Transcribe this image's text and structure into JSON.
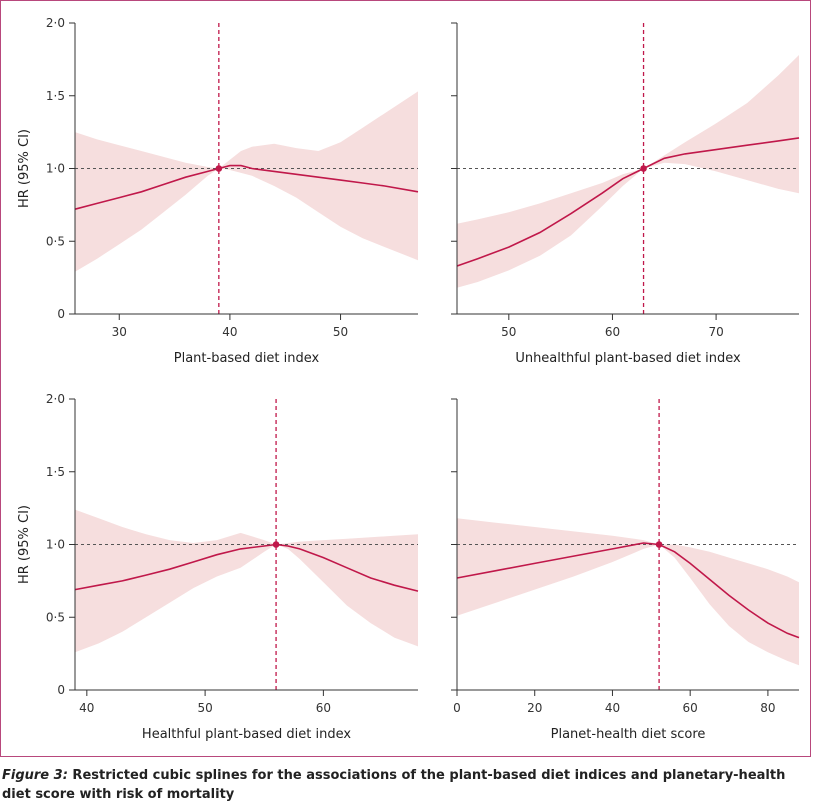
{
  "colors": {
    "frame": "#b8487c",
    "line": "#c0184a",
    "band": "#f6dede",
    "ref_line": "#555555",
    "axis": "#333333"
  },
  "caption": {
    "figure_number": "Figure 3:",
    "text": " Restricted cubic splines for the associations of the plant-based diet indices and planetary-health diet score with risk of mortality"
  },
  "chart_data": [
    {
      "type": "line",
      "xlabel": "Plant-based diet index",
      "ylabel": "HR (95% CI)",
      "xlim": [
        26,
        57
      ],
      "ylim": [
        0,
        2.0
      ],
      "xticks": [
        30,
        40,
        50
      ],
      "yticks": [
        0,
        0.5,
        1.0,
        1.5,
        2.0
      ],
      "ytick_labels": [
        "0",
        "0·5",
        "1·0",
        "1·5",
        "2·0"
      ],
      "reference_x": 39,
      "reference_hr": 1.0,
      "x": [
        26,
        28,
        30,
        32,
        34,
        36,
        38,
        39,
        40,
        41,
        42,
        44,
        46,
        48,
        50,
        52,
        54,
        57
      ],
      "hr": [
        0.72,
        0.76,
        0.8,
        0.84,
        0.89,
        0.94,
        0.98,
        1.0,
        1.02,
        1.02,
        1.0,
        0.98,
        0.96,
        0.94,
        0.92,
        0.9,
        0.88,
        0.84
      ],
      "upper": [
        1.25,
        1.2,
        1.16,
        1.12,
        1.08,
        1.04,
        1.01,
        1.0,
        1.06,
        1.12,
        1.15,
        1.17,
        1.14,
        1.12,
        1.18,
        1.28,
        1.38,
        1.53
      ],
      "lower": [
        0.29,
        0.38,
        0.48,
        0.58,
        0.7,
        0.82,
        0.95,
        1.0,
        0.99,
        0.97,
        0.95,
        0.88,
        0.8,
        0.7,
        0.6,
        0.52,
        0.46,
        0.37
      ]
    },
    {
      "type": "line",
      "xlabel": "Unhealthful plant-based diet index",
      "ylabel": "",
      "xlim": [
        45,
        78
      ],
      "ylim": [
        0,
        2.0
      ],
      "xticks": [
        50,
        60,
        70
      ],
      "yticks": [
        0,
        0.5,
        1.0,
        1.5,
        2.0
      ],
      "ytick_labels": [],
      "reference_x": 63,
      "reference_hr": 1.0,
      "x": [
        45,
        47,
        50,
        53,
        56,
        59,
        61,
        63,
        65,
        67,
        70,
        73,
        76,
        78
      ],
      "hr": [
        0.33,
        0.38,
        0.46,
        0.56,
        0.69,
        0.83,
        0.93,
        1.0,
        1.07,
        1.1,
        1.13,
        1.16,
        1.19,
        1.21
      ],
      "upper": [
        0.62,
        0.65,
        0.7,
        0.76,
        0.83,
        0.9,
        0.96,
        1.0,
        1.09,
        1.18,
        1.31,
        1.45,
        1.64,
        1.78
      ],
      "lower": [
        0.18,
        0.22,
        0.3,
        0.4,
        0.54,
        0.74,
        0.88,
        1.0,
        1.04,
        1.03,
        0.98,
        0.92,
        0.86,
        0.83
      ]
    },
    {
      "type": "line",
      "xlabel": "Healthful plant-based diet index",
      "ylabel": "HR (95% CI)",
      "xlim": [
        39,
        68
      ],
      "ylim": [
        0,
        2.0
      ],
      "xticks": [
        40,
        50,
        60
      ],
      "yticks": [
        0,
        0.5,
        1.0,
        1.5,
        2.0
      ],
      "ytick_labels": [
        "0",
        "0·5",
        "1·0",
        "1·5",
        "2·0"
      ],
      "reference_x": 56,
      "reference_hr": 1.0,
      "x": [
        39,
        41,
        43,
        45,
        47,
        49,
        51,
        53,
        55,
        56,
        57,
        58,
        60,
        62,
        64,
        66,
        68
      ],
      "hr": [
        0.69,
        0.72,
        0.75,
        0.79,
        0.83,
        0.88,
        0.93,
        0.97,
        0.99,
        1.0,
        0.99,
        0.97,
        0.91,
        0.84,
        0.77,
        0.72,
        0.68
      ],
      "upper": [
        1.24,
        1.18,
        1.12,
        1.07,
        1.03,
        1.01,
        1.03,
        1.08,
        1.03,
        1.0,
        1.01,
        1.02,
        1.03,
        1.04,
        1.05,
        1.06,
        1.07
      ],
      "lower": [
        0.26,
        0.32,
        0.4,
        0.5,
        0.6,
        0.7,
        0.78,
        0.84,
        0.95,
        1.0,
        0.97,
        0.9,
        0.74,
        0.58,
        0.46,
        0.36,
        0.3
      ]
    },
    {
      "type": "line",
      "xlabel": "Planet-health diet score",
      "ylabel": "",
      "xlim": [
        0,
        88
      ],
      "ylim": [
        0,
        2.0
      ],
      "xticks": [
        0,
        20,
        40,
        60,
        80
      ],
      "yticks": [
        0,
        0.5,
        1.0,
        1.5,
        2.0
      ],
      "ytick_labels": [],
      "reference_x": 52,
      "reference_hr": 1.0,
      "x": [
        0,
        10,
        20,
        30,
        40,
        48,
        52,
        56,
        60,
        65,
        70,
        75,
        80,
        85,
        88
      ],
      "hr": [
        0.77,
        0.82,
        0.87,
        0.92,
        0.97,
        1.01,
        1.0,
        0.95,
        0.87,
        0.76,
        0.65,
        0.55,
        0.46,
        0.39,
        0.36
      ],
      "upper": [
        1.18,
        1.15,
        1.12,
        1.09,
        1.06,
        1.03,
        1.0,
        1.0,
        0.98,
        0.95,
        0.91,
        0.87,
        0.83,
        0.78,
        0.74
      ],
      "lower": [
        0.51,
        0.6,
        0.69,
        0.78,
        0.88,
        0.97,
        1.0,
        0.91,
        0.77,
        0.59,
        0.44,
        0.33,
        0.26,
        0.2,
        0.17
      ]
    }
  ]
}
